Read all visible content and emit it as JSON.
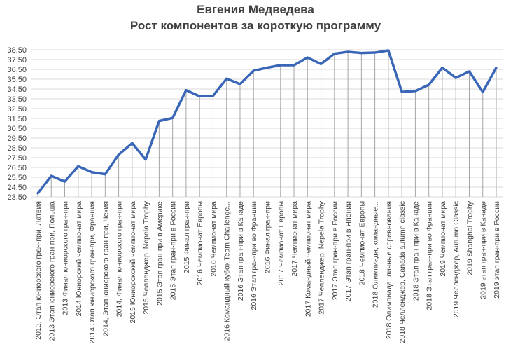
{
  "chart_data": {
    "type": "line",
    "title": "Евгения Медведева",
    "subtitle": "Рост компонентов за короткую программу",
    "xlabel": "",
    "ylabel": "",
    "ylim": [
      23.5,
      38.5
    ],
    "yticks": [
      "38,50",
      "37,50",
      "36,50",
      "35,50",
      "34,50",
      "33,50",
      "32,50",
      "31,50",
      "30,50",
      "29,50",
      "28,50",
      "27,50",
      "26,50",
      "25,50",
      "24,50",
      "23,50"
    ],
    "grid": true,
    "drop_lines": true,
    "line_color": "#3a66b8",
    "categories": [
      "2013, Этап юниорского гран-при, Латвия",
      "2013 Этап юниорского гран-при, Польша",
      "2013 Финал юниорского гран-при",
      "2014 Юниорский чемпионат мира",
      "2014 Этап юниорского гран-при, Франция",
      "2014, Этап юниорского гран-при, Чехия",
      "2014, Финал юниорского гран-при",
      "2015 Юниорскский чемпионат мира",
      "2015 Челленджер, Nepela Trophy",
      "2015 Этап гран-при в Америке",
      "2015 Этап гран-при в России",
      "2015 Финал гран-при",
      "2016 Чемпионат Европы",
      "2016 Чемпионат мира",
      "2016 Командный кубок Team Challenge...",
      "2016 Этап гран-при в Канаде",
      "2016 Этап гран-при во Франции",
      "2016 Финал гран-при",
      "2017 Чемпионат Европы",
      "2017 Чемпионат мира",
      "2017 Командный чемпионат мира",
      "2017 Челленджер, Nepela Trophy",
      "2017 Этап гран-при в России",
      "2017 Этап гран-при в Японии",
      "2018 Чемпионат Европы",
      "2018 Олимпиада, командные...",
      "2018 Олимпиада, личные соревнования",
      "2018 Челленджер, Canada autumn classic",
      "2018 Этап гран-при в Канаде",
      "2018 Этап гран-при во Франции",
      "2019 Чемпионат мира",
      "2019 Челленджер, Autumn Classic",
      "2019 Shanghai Trophy",
      "2019 этап гран-при в Канаде",
      "2019 этап гран-при в России"
    ],
    "values": [
      23.86,
      25.64,
      25.07,
      26.62,
      26.02,
      25.81,
      27.81,
      28.98,
      27.31,
      31.24,
      31.55,
      34.38,
      33.76,
      33.81,
      35.55,
      35.0,
      36.36,
      36.67,
      36.93,
      36.93,
      37.71,
      37.05,
      38.1,
      38.29,
      38.17,
      38.21,
      38.43,
      34.21,
      34.29,
      34.93,
      36.67,
      35.64,
      36.29,
      34.19,
      36.67
    ]
  }
}
